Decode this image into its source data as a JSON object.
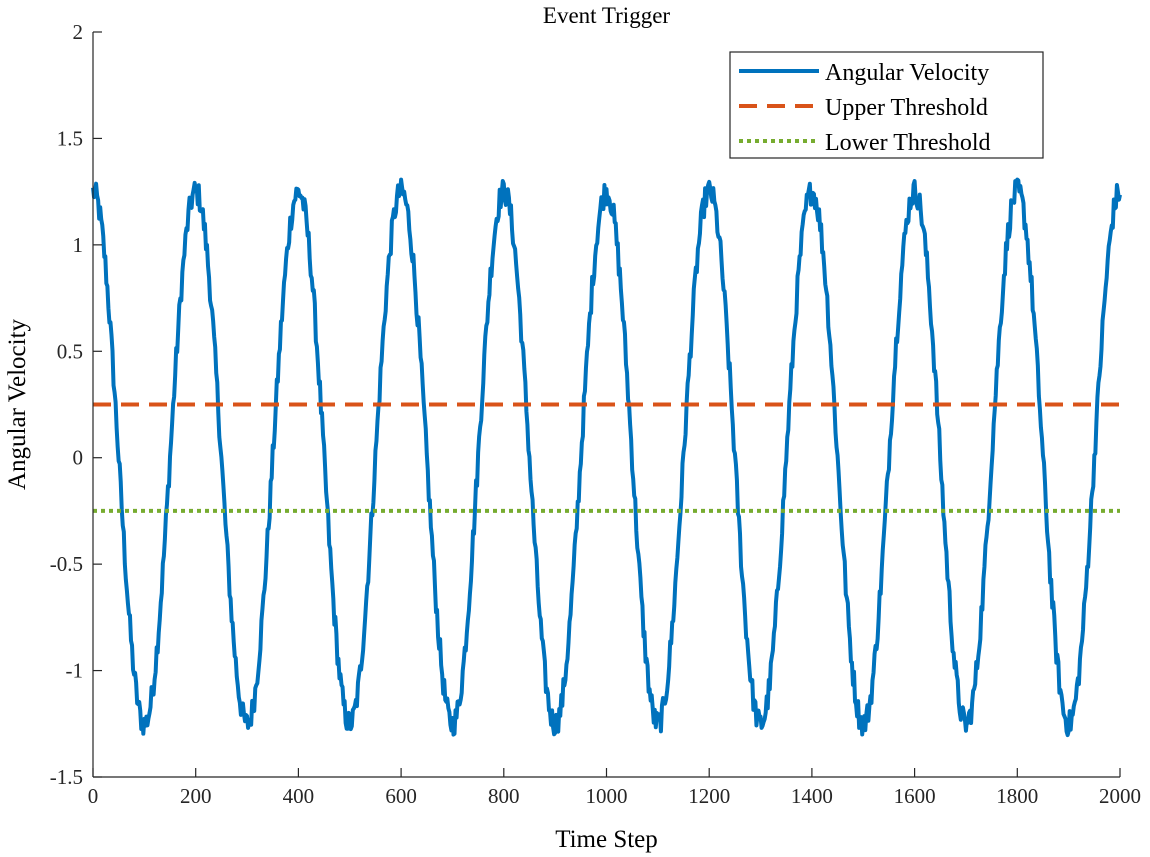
{
  "chart_data": {
    "type": "line",
    "title": "Event Trigger",
    "xlabel": "Time Step",
    "ylabel": "Angular Velocity",
    "xlim": [
      0,
      2000
    ],
    "ylim": [
      -1.5,
      2
    ],
    "xticks": [
      0,
      200,
      400,
      600,
      800,
      1000,
      1200,
      1400,
      1600,
      1800,
      2000
    ],
    "yticks": [
      -1.5,
      -1,
      -0.5,
      0,
      0.5,
      1,
      1.5,
      2
    ],
    "xtick_labels": [
      "0",
      "200",
      "400",
      "600",
      "800",
      "1000",
      "1200",
      "1400",
      "1600",
      "1800",
      "2000"
    ],
    "ytick_labels": [
      "-1.5",
      "-1",
      "-0.5",
      "0",
      "0.5",
      "1",
      "1.5",
      "2"
    ],
    "grid": false,
    "legend_position": "top-right",
    "series": [
      {
        "name": "Angular Velocity",
        "style": "solid",
        "color": "#0072BD",
        "function": "1.25*cos(2*pi*x/200) + noise",
        "amplitude": 1.25,
        "period": 200,
        "noise_amplitude": 0.06,
        "x_start": 0,
        "x_end": 2000
      },
      {
        "name": "Upper Threshold",
        "style": "dashed",
        "color": "#D95319",
        "value": 0.25
      },
      {
        "name": "Lower Threshold",
        "style": "dotted",
        "color": "#77AC30",
        "value": -0.25
      }
    ]
  }
}
